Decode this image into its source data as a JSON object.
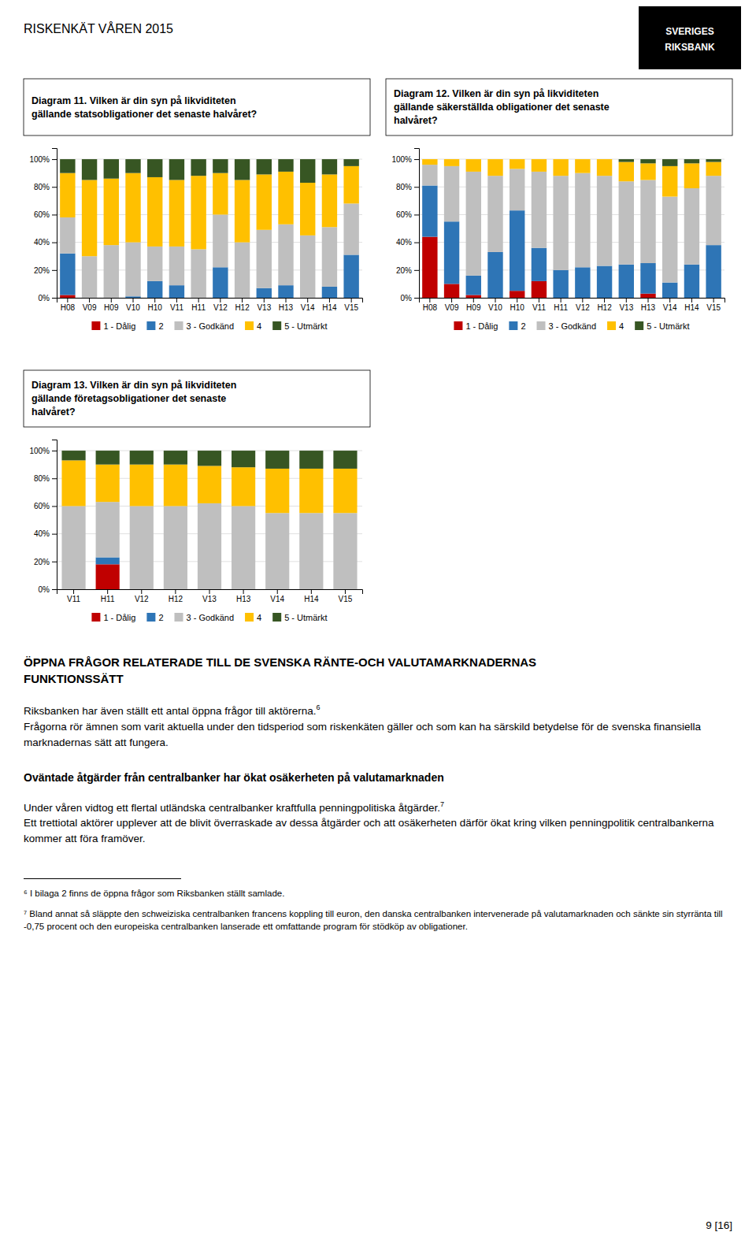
{
  "page_header": "RISKENKÄT VÅREN 2015",
  "logo": [
    "SVERIGES",
    "RIKSBANK"
  ],
  "chart_data": [
    {
      "type": "bar",
      "stacked": true,
      "title": "Diagram 11. Vilken är din syn på likviditeten\ngällande statsobligationer det senaste halvåret?",
      "categories": [
        "H08",
        "V09",
        "H09",
        "V10",
        "H10",
        "V11",
        "H11",
        "V12",
        "H12",
        "V13",
        "H13",
        "V14",
        "H14",
        "V15"
      ],
      "series": [
        {
          "name": "1 - Dålig",
          "color": "#C00000",
          "values": [
            2,
            0,
            0,
            0,
            0,
            0,
            0,
            0,
            0,
            0,
            0,
            0,
            0,
            0
          ]
        },
        {
          "name": "2",
          "color": "#2E75B6",
          "values": [
            30,
            0,
            0,
            1,
            12,
            9,
            0,
            22,
            0,
            7,
            9,
            0,
            8,
            31
          ]
        },
        {
          "name": "3 - Godkänd",
          "color": "#BFBFBF",
          "values": [
            26,
            30,
            38,
            39,
            25,
            28,
            35,
            38,
            40,
            42,
            44,
            45,
            43,
            37
          ]
        },
        {
          "name": "4",
          "color": "#FFC000",
          "values": [
            32,
            55,
            48,
            50,
            50,
            48,
            53,
            30,
            45,
            40,
            38,
            38,
            38,
            27
          ]
        },
        {
          "name": "5 - Utmärkt",
          "color": "#375623",
          "values": [
            10,
            15,
            14,
            10,
            13,
            15,
            12,
            10,
            15,
            11,
            9,
            17,
            11,
            5
          ]
        }
      ],
      "ylim": [
        0,
        108
      ],
      "yticks": [
        {
          "value": 0,
          "label": "0%"
        },
        {
          "value": 20,
          "label": "20%"
        },
        {
          "value": 40,
          "label": "40%"
        },
        {
          "value": 60,
          "label": "60%"
        },
        {
          "value": 80,
          "label": "80%"
        },
        {
          "value": 100,
          "label": "100%"
        }
      ],
      "grid": true,
      "legend": "bottom"
    },
    {
      "type": "bar",
      "stacked": true,
      "title": "Diagram 12. Vilken är din syn på likviditeten\ngällande säkerställda obligationer det senaste\nhalvåret?",
      "categories": [
        "H08",
        "V09",
        "H09",
        "V10",
        "H10",
        "V11",
        "H11",
        "V12",
        "H12",
        "V13",
        "H13",
        "V14",
        "H14",
        "V15"
      ],
      "series": [
        {
          "name": "1 - Dålig",
          "color": "#C00000",
          "values": [
            44,
            10,
            2,
            0,
            5,
            12,
            0,
            0,
            0,
            0,
            3,
            0,
            0,
            0
          ]
        },
        {
          "name": "2",
          "color": "#2E75B6",
          "values": [
            37,
            45,
            14,
            33,
            58,
            24,
            20,
            22,
            23,
            24,
            22,
            11,
            24,
            38
          ]
        },
        {
          "name": "3 - Godkänd",
          "color": "#BFBFBF",
          "values": [
            15,
            40,
            75,
            55,
            30,
            55,
            68,
            68,
            65,
            60,
            60,
            62,
            55,
            50
          ]
        },
        {
          "name": "4",
          "color": "#FFC000",
          "values": [
            4,
            5,
            9,
            12,
            7,
            9,
            12,
            10,
            12,
            14,
            12,
            22,
            18,
            10
          ]
        },
        {
          "name": "5 - Utmärkt",
          "color": "#375623",
          "values": [
            0,
            0,
            0,
            0,
            0,
            0,
            0,
            0,
            0,
            2,
            3,
            5,
            3,
            2
          ]
        }
      ],
      "ylim": [
        0,
        108
      ],
      "yticks": [
        {
          "value": 0,
          "label": "0%"
        },
        {
          "value": 20,
          "label": "20%"
        },
        {
          "value": 40,
          "label": "40%"
        },
        {
          "value": 60,
          "label": "60%"
        },
        {
          "value": 80,
          "label": "80%"
        },
        {
          "value": 100,
          "label": "100%"
        }
      ],
      "grid": true,
      "legend": "bottom"
    },
    {
      "type": "bar",
      "stacked": true,
      "title": "Diagram 13. Vilken är din syn på likviditeten\ngällande företagsobligationer det senaste\nhalvåret?",
      "categories": [
        "V11",
        "H11",
        "V12",
        "H12",
        "V13",
        "H13",
        "V14",
        "H14",
        "V15"
      ],
      "series": [
        {
          "name": "1 - Dålig",
          "color": "#C00000",
          "values": [
            0,
            18,
            0,
            0,
            0,
            0,
            0,
            0,
            0
          ]
        },
        {
          "name": "2",
          "color": "#2E75B6",
          "values": [
            0,
            5,
            0,
            0,
            0,
            0,
            0,
            0,
            0
          ]
        },
        {
          "name": "3 - Godkänd",
          "color": "#BFBFBF",
          "values": [
            60,
            40,
            60,
            60,
            62,
            60,
            55,
            55,
            55
          ]
        },
        {
          "name": "4",
          "color": "#FFC000",
          "values": [
            33,
            27,
            30,
            30,
            27,
            28,
            32,
            32,
            32
          ]
        },
        {
          "name": "5 - Utmärkt",
          "color": "#375623",
          "values": [
            7,
            10,
            10,
            10,
            11,
            12,
            13,
            13,
            13
          ]
        }
      ],
      "ylim": [
        0,
        108
      ],
      "yticks": [
        {
          "value": 0,
          "label": "0%"
        },
        {
          "value": 20,
          "label": "20%"
        },
        {
          "value": 40,
          "label": "40%"
        },
        {
          "value": 60,
          "label": "60%"
        },
        {
          "value": 80,
          "label": "80%"
        },
        {
          "value": 100,
          "label": "100%"
        }
      ],
      "grid": true,
      "legend": "bottom"
    }
  ],
  "text_section": {
    "title": [
      "ÖPPNA FRÅGOR RELATERADE TILL DE SVENSKA RÄNTE-OCH VALUTAMARKNADERNAS",
      "FUNKTIONSSÄTT"
    ],
    "paragraphs": [
      {
        "lead": "Riksbanken har även ställt ett antal öppna frågor till aktörerna.",
        "note": "6",
        "text": "Frågorna rör ämnen som varit aktuella under den tidsperiod som riskenkäten gäller och som kan ha särskild betydelse för de svenska finansiella marknadernas sätt att fungera."
      },
      {
        "lead": "Under våren vidtog ett flertal utländska centralbanker kraftfulla penningpolitiska åtgärder.",
        "note": "7",
        "text": "Ett trettiotal aktörer upplever att de blivit överraskade av dessa åtgärder och att osäkerheten därför ökat kring vilken penningpolitik centralbankerna kommer att föra framöver."
      }
    ],
    "subheading": "Oväntade åtgärder från centralbanker har ökat osäkerheten på valutamarknaden",
    "footnotes": [
      "⁶ I bilaga 2 finns de öppna frågor som Riksbanken ställt samlade.",
      "⁷ Bland annat så släppte den schweiziska centralbanken francens koppling till euron, den danska centralbanken intervenerade på valutamarknaden och sänkte sin styrränta till -0,75 procent och den europeiska centralbanken lanserade ett omfattande program för stödköp av obligationer."
    ],
    "page_number": "9 [16]"
  }
}
